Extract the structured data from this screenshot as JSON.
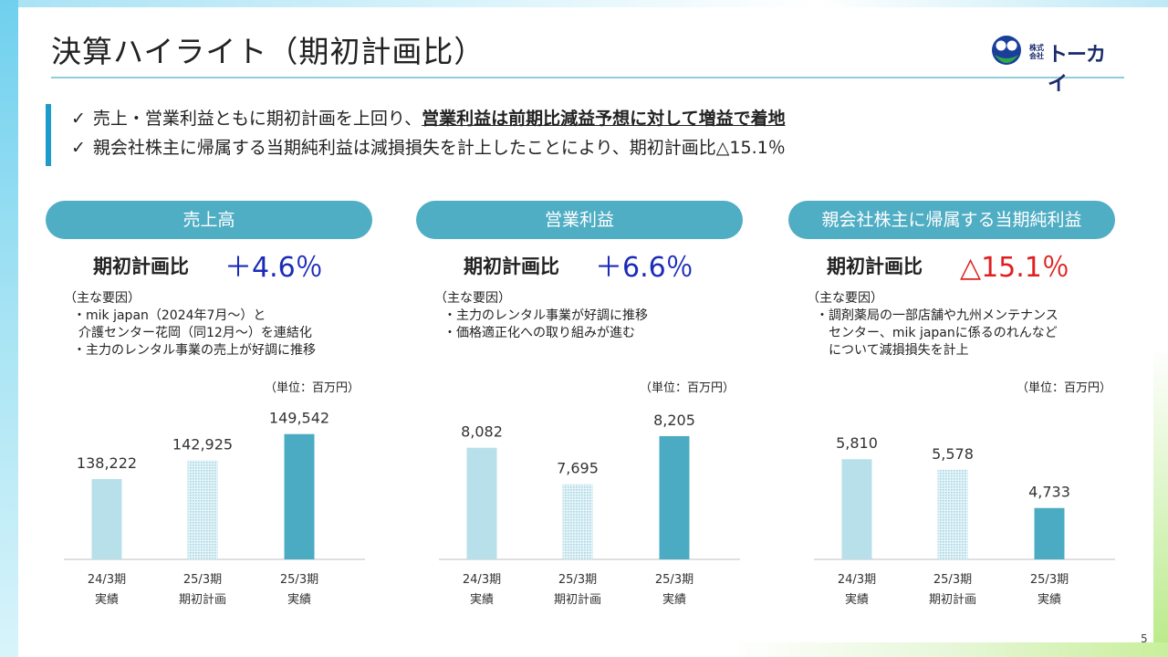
{
  "title": "決算ハイライト（期初計画比）",
  "logo": {
    "small_top": "株式",
    "small_bottom": "会社",
    "name": "トーカイ"
  },
  "highlights": [
    {
      "check": "✓",
      "text": "売上・営業利益ともに期初計画を上回り、",
      "strong": "営業利益は前期比減益予想に対して増益で着地"
    },
    {
      "check": "✓",
      "text": "親会社株主に帰属する当期純利益は減損損失を計上したことにより、期初計画比△15.1％",
      "strong": ""
    }
  ],
  "columns": [
    {
      "header": "売上高",
      "ratio_label": "期初計画比",
      "ratio_value": "＋4.6％",
      "ratio_color": "#1a2bb8",
      "factors_head": "（主な要因）",
      "factors": [
        "・mik japan（2024年7月～）と",
        "介護センター花岡（同12月～）を連結化",
        "・主力のレンタル事業の売上が好調に推移"
      ],
      "unit": "（単位：百万円）"
    },
    {
      "header": "営業利益",
      "ratio_label": "期初計画比",
      "ratio_value": "＋6.6％",
      "ratio_color": "#1a2bb8",
      "factors_head": "（主な要因）",
      "factors": [
        "・主力のレンタル事業が好調に推移",
        "・価格適正化への取り組みが進む"
      ],
      "unit": "（単位：百万円）"
    },
    {
      "header": "親会社株主に帰属する当期純利益",
      "ratio_label": "期初計画比",
      "ratio_value": "△15.1％",
      "ratio_color": "#e02020",
      "factors_head": "（主な要因）",
      "factors": [
        "・調剤薬局の一部店舗や九州メンテナンス",
        "センター、mik japanに係るのれんなど",
        "について減損損失を計上"
      ],
      "unit": "（単位：百万円）"
    }
  ],
  "chart_data": [
    {
      "type": "bar",
      "categories": [
        [
          "24/3期",
          "実績"
        ],
        [
          "25/3期",
          "期初計画"
        ],
        [
          "25/3期",
          "実績"
        ]
      ],
      "values": [
        138222,
        142925,
        149542
      ],
      "value_labels": [
        "138,222",
        "142,925",
        "149,542"
      ],
      "bar_styles": [
        "light",
        "dotted",
        "solid"
      ],
      "ylim": [
        118000,
        152000
      ]
    },
    {
      "type": "bar",
      "categories": [
        [
          "24/3期",
          "実績"
        ],
        [
          "25/3期",
          "期初計画"
        ],
        [
          "25/3期",
          "実績"
        ]
      ],
      "values": [
        8082,
        7695,
        8205
      ],
      "value_labels": [
        "8,082",
        "7,695",
        "8,205"
      ],
      "bar_styles": [
        "light",
        "dotted",
        "solid"
      ],
      "ylim": [
        6900,
        8330
      ]
    },
    {
      "type": "bar",
      "categories": [
        [
          "24/3期",
          "実績"
        ],
        [
          "25/3期",
          "期初計画"
        ],
        [
          "25/3期",
          "実績"
        ]
      ],
      "values": [
        5810,
        5578,
        4733
      ],
      "value_labels": [
        "5,810",
        "5,578",
        "4,733"
      ],
      "bar_styles": [
        "light",
        "dotted",
        "solid"
      ],
      "ylim": [
        3600,
        6580
      ]
    }
  ],
  "colors": {
    "light": "#b8e0ea",
    "dotted": "#a6d6e4",
    "solid": "#4aabc3",
    "axis": "#bfbfbf"
  },
  "page_number": "5"
}
